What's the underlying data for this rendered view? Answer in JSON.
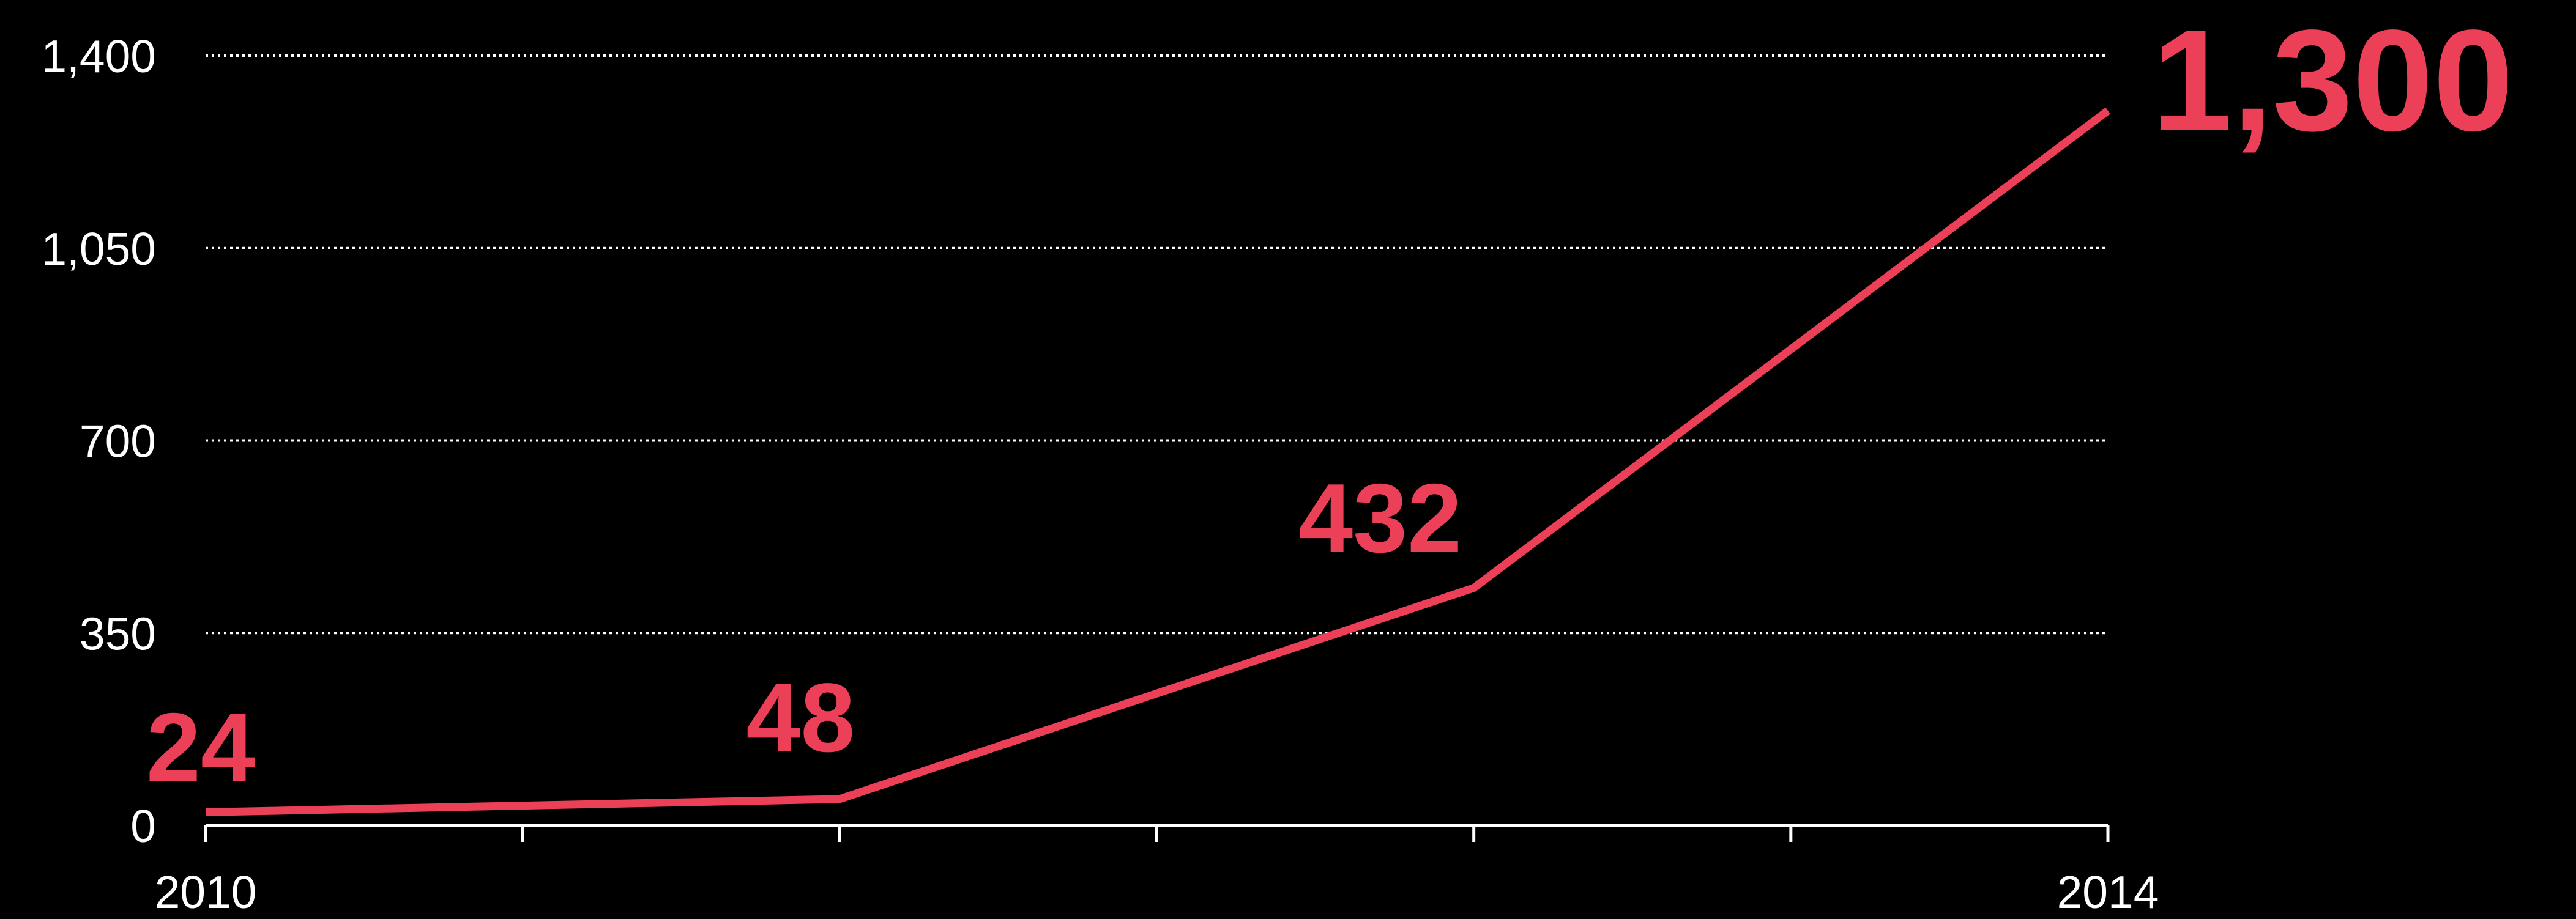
{
  "chart_data": {
    "type": "line",
    "categories": [
      "2010",
      null,
      null,
      "2014"
    ],
    "series": [
      {
        "name": null,
        "color": "#ec4059",
        "values": [
          24,
          48,
          432,
          1300
        ],
        "value_labels": [
          "24",
          "48",
          "432",
          "1,300"
        ]
      }
    ],
    "ylim": [
      0,
      1400
    ],
    "yticks": [
      0,
      350,
      700,
      {
        "value": 1050,
        "label": "1,050"
      },
      {
        "value": 1400,
        "label": "1,400"
      }
    ],
    "grid": true
  }
}
